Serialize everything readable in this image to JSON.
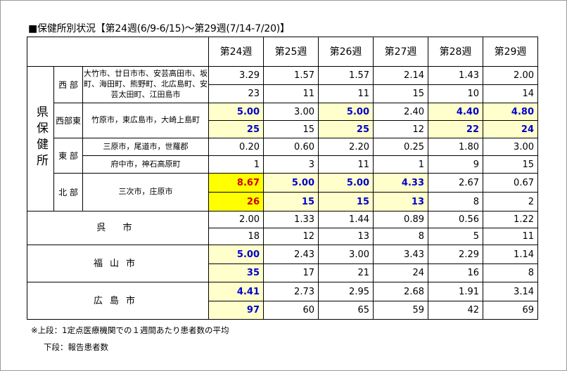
{
  "title": "■保健所別状況【第24週(6/9-6/15)～第29週(7/14-7/20)】",
  "weeks": [
    "第24週",
    "第25週",
    "第26週",
    "第27週",
    "第28週",
    "第29週"
  ],
  "group_label": "県保健所",
  "rows": {
    "nishi": {
      "region": "西 部",
      "cities": "大竹市、廿日市市、安芸高田市、坂町、海田町、熊野町、北広島町、安芸太田町、江田島市",
      "avg": [
        "3.29",
        "1.57",
        "1.57",
        "2.14",
        "1.43",
        "2.00"
      ],
      "count": [
        "23",
        "11",
        "11",
        "15",
        "10",
        "14"
      ]
    },
    "nishitou": {
      "region": "西部東",
      "cities": "竹原市，東広島市，大崎上島町",
      "avg": [
        "5.00",
        "3.00",
        "5.00",
        "2.40",
        "4.40",
        "4.80"
      ],
      "count": [
        "25",
        "15",
        "25",
        "12",
        "22",
        "24"
      ]
    },
    "higashi": {
      "region": "東 部",
      "cities_1": "三原市，尾道市，世羅郡",
      "cities_2": "府中市，神石高原町",
      "avg": [
        "0.20",
        "0.60",
        "2.20",
        "0.25",
        "1.80",
        "3.00"
      ],
      "count": [
        "1",
        "3",
        "11",
        "1",
        "9",
        "15"
      ]
    },
    "kita": {
      "region": "北 部",
      "cities": "三次市，庄原市",
      "avg": [
        "8.67",
        "5.00",
        "5.00",
        "4.33",
        "2.67",
        "0.67"
      ],
      "count": [
        "26",
        "15",
        "15",
        "13",
        "8",
        "2"
      ]
    },
    "kure": {
      "name": "呉 市",
      "avg": [
        "2.00",
        "1.33",
        "1.44",
        "0.89",
        "0.56",
        "1.22"
      ],
      "count": [
        "18",
        "12",
        "13",
        "8",
        "5",
        "11"
      ]
    },
    "fukuyama": {
      "name": "福山市",
      "avg": [
        "5.00",
        "2.43",
        "3.00",
        "3.43",
        "2.29",
        "1.14"
      ],
      "count": [
        "35",
        "17",
        "21",
        "24",
        "16",
        "8"
      ]
    },
    "hiroshima": {
      "name": "広島市",
      "avg": [
        "4.41",
        "2.73",
        "2.95",
        "2.68",
        "1.91",
        "3.14"
      ],
      "count": [
        "97",
        "60",
        "65",
        "59",
        "42",
        "69"
      ]
    }
  },
  "notes": {
    "upper": "※上段：1定点医療機関での１週間あたり患者数の平均",
    "lower": "下段：報告患者数"
  },
  "colors": {
    "highlight_light": "#ffffcc",
    "highlight_strong": "#ffff00",
    "value_blue": "#0000cc",
    "value_red": "#cc0000"
  }
}
